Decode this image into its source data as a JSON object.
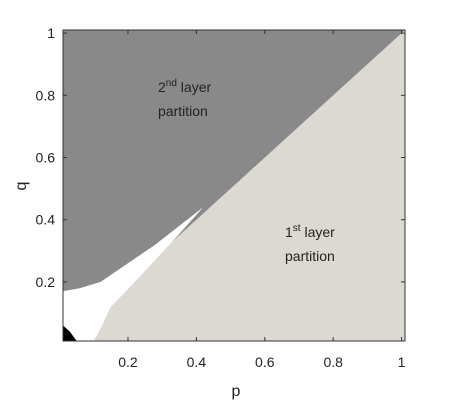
{
  "chart_data": {
    "type": "region",
    "x_label": "p",
    "y_label": "q",
    "xlim": [
      0.01,
      1.01
    ],
    "ylim": [
      0.01,
      1.01
    ],
    "xticks": [
      0.2,
      0.4,
      0.6,
      0.8,
      1
    ],
    "yticks": [
      0.2,
      0.4,
      0.6,
      0.8,
      1
    ],
    "regions": [
      {
        "color": "#dcd8d2",
        "x": [
          0.01,
          1.01,
          1.01,
          0.01
        ],
        "y": [
          0.01,
          0.01,
          1.01,
          1.01
        ]
      },
      {
        "color": "#898989",
        "x": [
          0.01,
          0.01,
          1.01
        ],
        "y": [
          0.01,
          1.01,
          1.01
        ]
      },
      {
        "color": "#ffffff",
        "x": [
          0.01,
          0.01,
          0.06,
          0.12,
          0.2,
          0.28,
          0.35,
          0.42,
          0.33,
          0.22,
          0.15,
          0.12,
          0.1
        ],
        "y": [
          0.01,
          0.17,
          0.18,
          0.2,
          0.26,
          0.32,
          0.38,
          0.44,
          0.33,
          0.2,
          0.12,
          0.05,
          0.01
        ]
      },
      {
        "color": "#000000",
        "x": [
          0.01,
          0.01,
          0.03,
          0.05
        ],
        "y": [
          0.01,
          0.06,
          0.04,
          0.01
        ]
      }
    ],
    "annotations": [
      {
        "number": "2",
        "suffix": "nd",
        "text": " layer",
        "line2": "partition"
      },
      {
        "number": "1",
        "suffix": "st",
        "text": " layer",
        "line2": "partition"
      }
    ]
  }
}
